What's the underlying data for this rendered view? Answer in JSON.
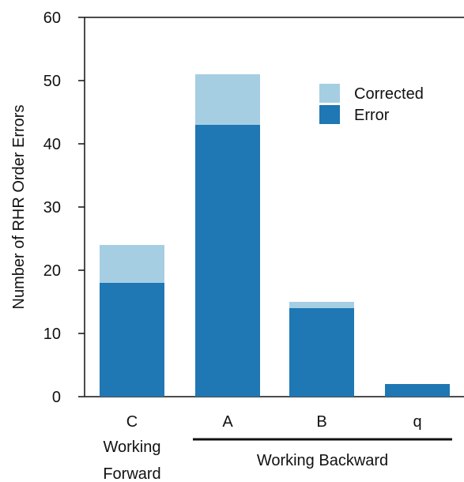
{
  "chart_data": {
    "type": "bar",
    "stacked": true,
    "categories": [
      "C",
      "A",
      "B",
      "q"
    ],
    "series": [
      {
        "name": "Error",
        "color": "#1f77b4",
        "values": [
          18,
          43,
          14,
          2
        ]
      },
      {
        "name": "Corrected",
        "color": "#a6cee3",
        "values": [
          6,
          8,
          1,
          0
        ]
      }
    ],
    "ylabel": "Number of RHR Order Errors",
    "ylim": [
      0,
      60
    ],
    "yticks": [
      0,
      10,
      20,
      30,
      40,
      50,
      60
    ],
    "legend": {
      "placement": "top-right",
      "entries": [
        "Corrected",
        "Error"
      ]
    },
    "groups": [
      {
        "label": "Working\nForward",
        "categories": [
          "C"
        ],
        "underline": false
      },
      {
        "label": "Working Backward",
        "categories": [
          "A",
          "B",
          "q"
        ],
        "underline": true
      }
    ],
    "grid": false
  }
}
